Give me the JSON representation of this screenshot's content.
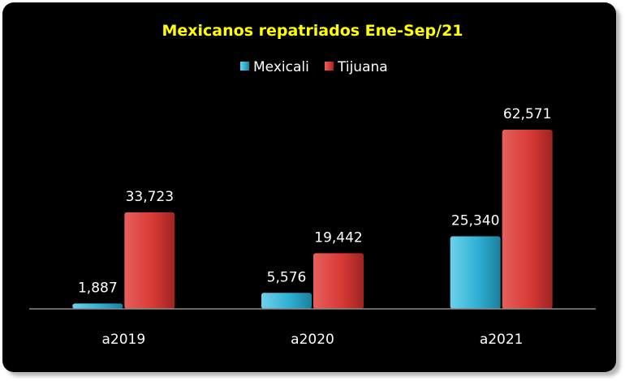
{
  "chart_data": {
    "type": "bar",
    "title": "Mexicanos repatriados Ene-Sep/21",
    "categories": [
      "a2019",
      "a2020",
      "a2021"
    ],
    "series": [
      {
        "name": "Mexicali",
        "values": [
          1887,
          5576,
          25340
        ],
        "labels": [
          "1,887",
          "5,576",
          "25,340"
        ],
        "color": "#2fb0d4"
      },
      {
        "name": "Tijuana",
        "values": [
          33723,
          19442,
          62571
        ],
        "labels": [
          "33,723",
          "19,442",
          "62,571"
        ],
        "color": "#d93a36"
      }
    ],
    "ylim": [
      0,
      70000
    ],
    "legend_position": "top-center",
    "grid": false,
    "colors": {
      "background": "#000000",
      "title": "#ffff00",
      "text": "#ffffff"
    }
  }
}
